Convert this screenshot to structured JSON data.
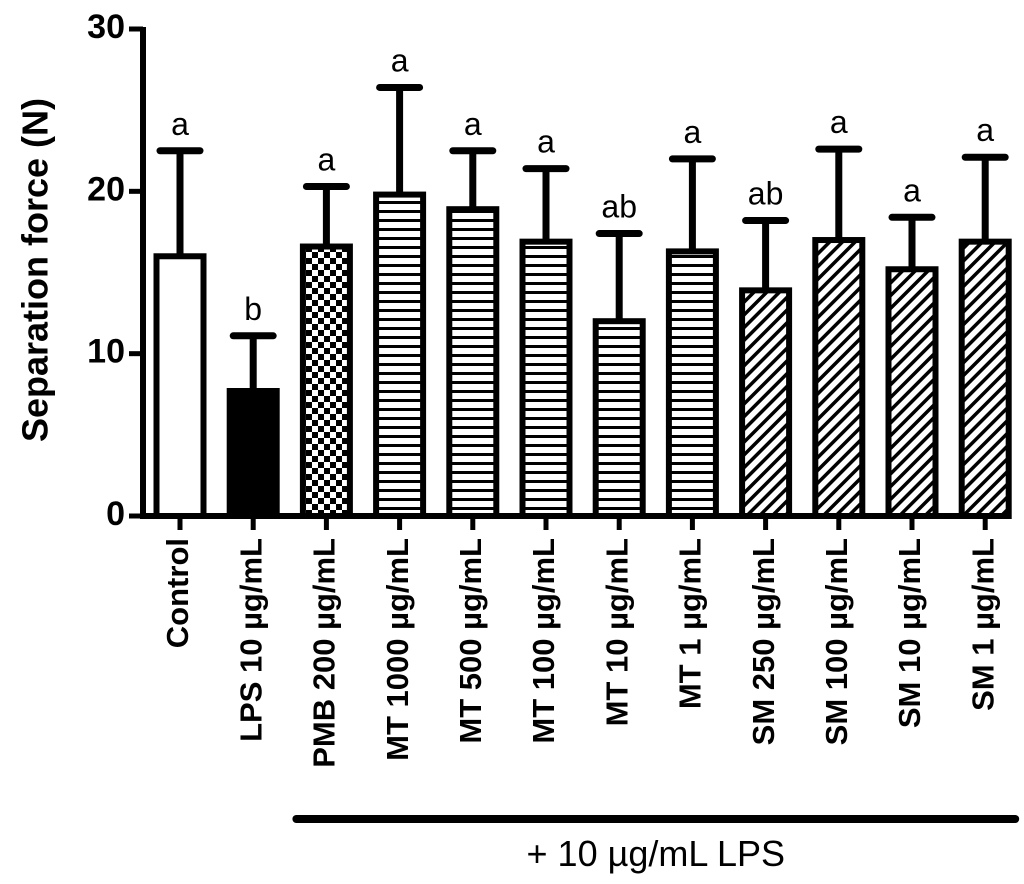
{
  "chart_data": {
    "type": "bar",
    "title": "",
    "xlabel": "",
    "ylabel": "Separation force (N)",
    "ylim": [
      0,
      30
    ],
    "yticks": [
      0,
      10,
      20,
      30
    ],
    "grid": false,
    "categories": [
      "Control",
      "LPS 10 µg/mL",
      "PMB 200 µg/mL",
      "MT 1000 µg/mL",
      "MT 500 µg/mL",
      "MT 100 µg/mL",
      "MT 10 µg/mL",
      "MT 1 µg/mL",
      "SM 250 µg/mL",
      "SM 100 µg/mL",
      "SM 10 µg/mL",
      "SM 1 µg/mL"
    ],
    "values": [
      16.0,
      7.7,
      16.6,
      19.8,
      18.9,
      16.9,
      12.0,
      16.3,
      13.9,
      17.0,
      15.2,
      16.9
    ],
    "error_upper": [
      22.5,
      11.1,
      20.3,
      26.4,
      22.5,
      21.4,
      17.4,
      22.0,
      18.2,
      22.6,
      18.4,
      22.1
    ],
    "significance": [
      "a",
      "b",
      "a",
      "a",
      "a",
      "a",
      "ab",
      "a",
      "ab",
      "a",
      "a",
      "a"
    ],
    "patterns": [
      "white",
      "black",
      "checker",
      "hlines",
      "hlines",
      "hlines",
      "hlines",
      "hlines",
      "diag",
      "diag",
      "diag",
      "diag"
    ],
    "group_annotation": {
      "label": "+ 10 µg/mL LPS",
      "from_index": 2,
      "to_index": 11
    }
  }
}
